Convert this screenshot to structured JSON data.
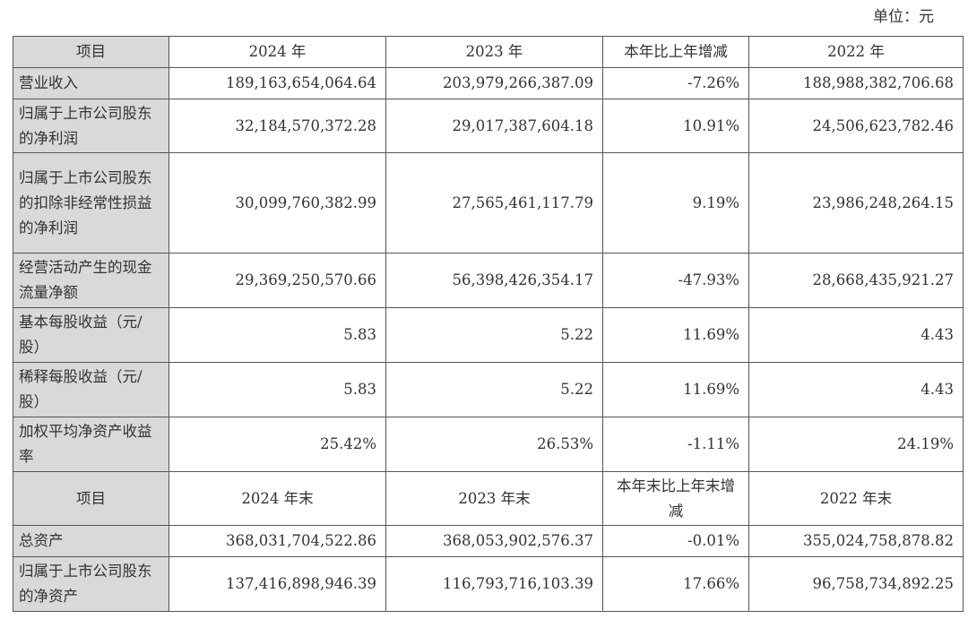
{
  "unit_label": "单位：元",
  "header1": [
    "项目",
    "2024 年",
    "2023 年",
    "本年比上年增减",
    "2022 年"
  ],
  "rows1": [
    {
      "label": "营业收入",
      "v2024": "189,163,654,064.64",
      "v2023": "203,979,266,387.09",
      "change": "-7.26%",
      "v2022": "188,988,382,706.68"
    },
    {
      "label": "归属于上市公司股东的净利润",
      "v2024": "32,184,570,372.28",
      "v2023": "29,017,387,604.18",
      "change": "10.91%",
      "v2022": "24,506,623,782.46"
    },
    {
      "label": "归属于上市公司股东的扣除非经常性损益的净利润",
      "v2024": "30,099,760,382.99",
      "v2023": "27,565,461,117.79",
      "change": "9.19%",
      "v2022": "23,986,248,264.15"
    },
    {
      "label": "经营活动产生的现金流量净额",
      "v2024": "29,369,250,570.66",
      "v2023": "56,398,426,354.17",
      "change": "-47.93%",
      "v2022": "28,668,435,921.27"
    },
    {
      "label": "基本每股收益（元/股）",
      "v2024": "5.83",
      "v2023": "5.22",
      "change": "11.69%",
      "v2022": "4.43"
    },
    {
      "label": "稀释每股收益（元/股）",
      "v2024": "5.83",
      "v2023": "5.22",
      "change": "11.69%",
      "v2022": "4.43"
    },
    {
      "label": "加权平均净资产收益率",
      "v2024": "25.42%",
      "v2023": "26.53%",
      "change": "-1.11%",
      "v2022": "24.19%"
    }
  ],
  "header2": [
    "项目",
    "2024 年末",
    "2023 年末",
    "本年末比上年末增减",
    "2022 年末"
  ],
  "rows2": [
    {
      "label": "总资产",
      "v2024": "368,031,704,522.86",
      "v2023": "368,053,902,576.37",
      "change": "-0.01%",
      "v2022": "355,024,758,878.82"
    },
    {
      "label": "归属于上市公司股东的净资产",
      "v2024": "137,416,898,946.39",
      "v2023": "116,793,716,103.39",
      "change": "17.66%",
      "v2022": "96,758,734,892.25"
    }
  ],
  "colors": {
    "header_bg": "#d9d9d9",
    "border": "#555555"
  }
}
